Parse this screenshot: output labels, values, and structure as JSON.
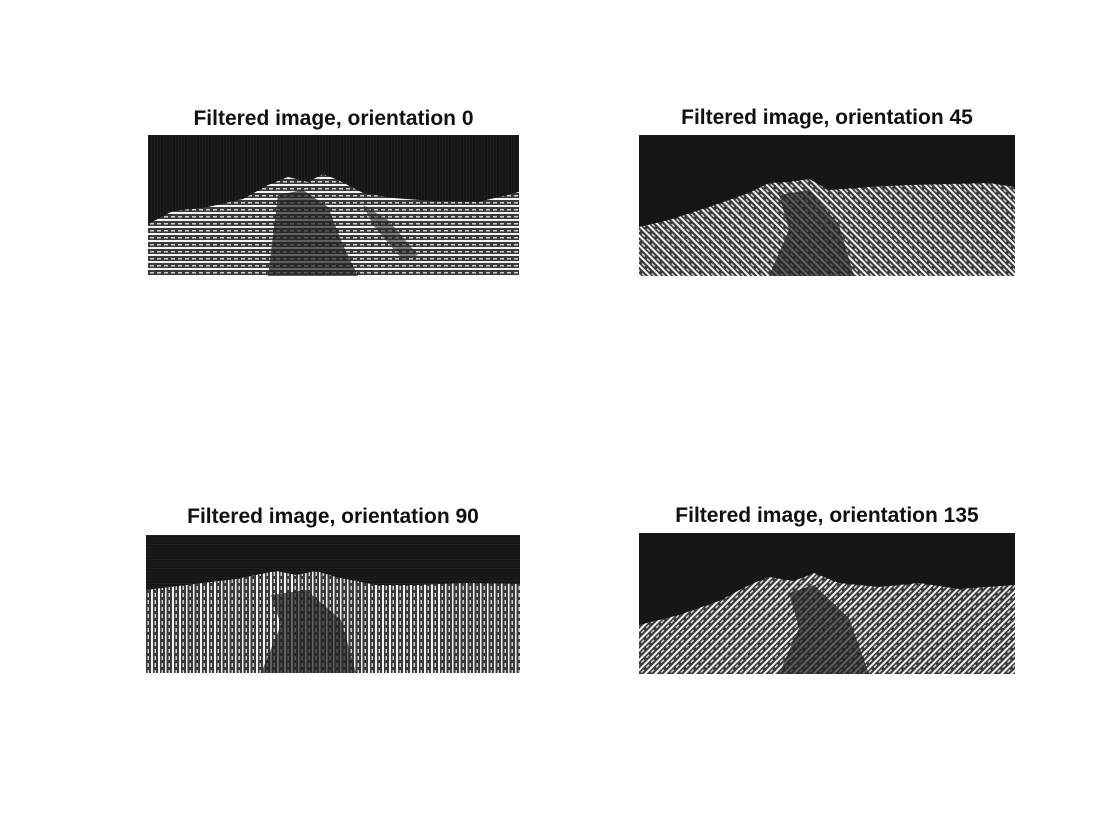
{
  "panels": [
    {
      "title": "Filtered image, orientation 0"
    },
    {
      "title": "Filtered image, orientation 45"
    },
    {
      "title": "Filtered image, orientation 90"
    },
    {
      "title": "Filtered image, orientation 135"
    }
  ],
  "colors": {
    "background": "#ffffff",
    "sky": "#161616",
    "texture_light": "#f4f4f4",
    "texture_dark": "#3a3a3a"
  }
}
